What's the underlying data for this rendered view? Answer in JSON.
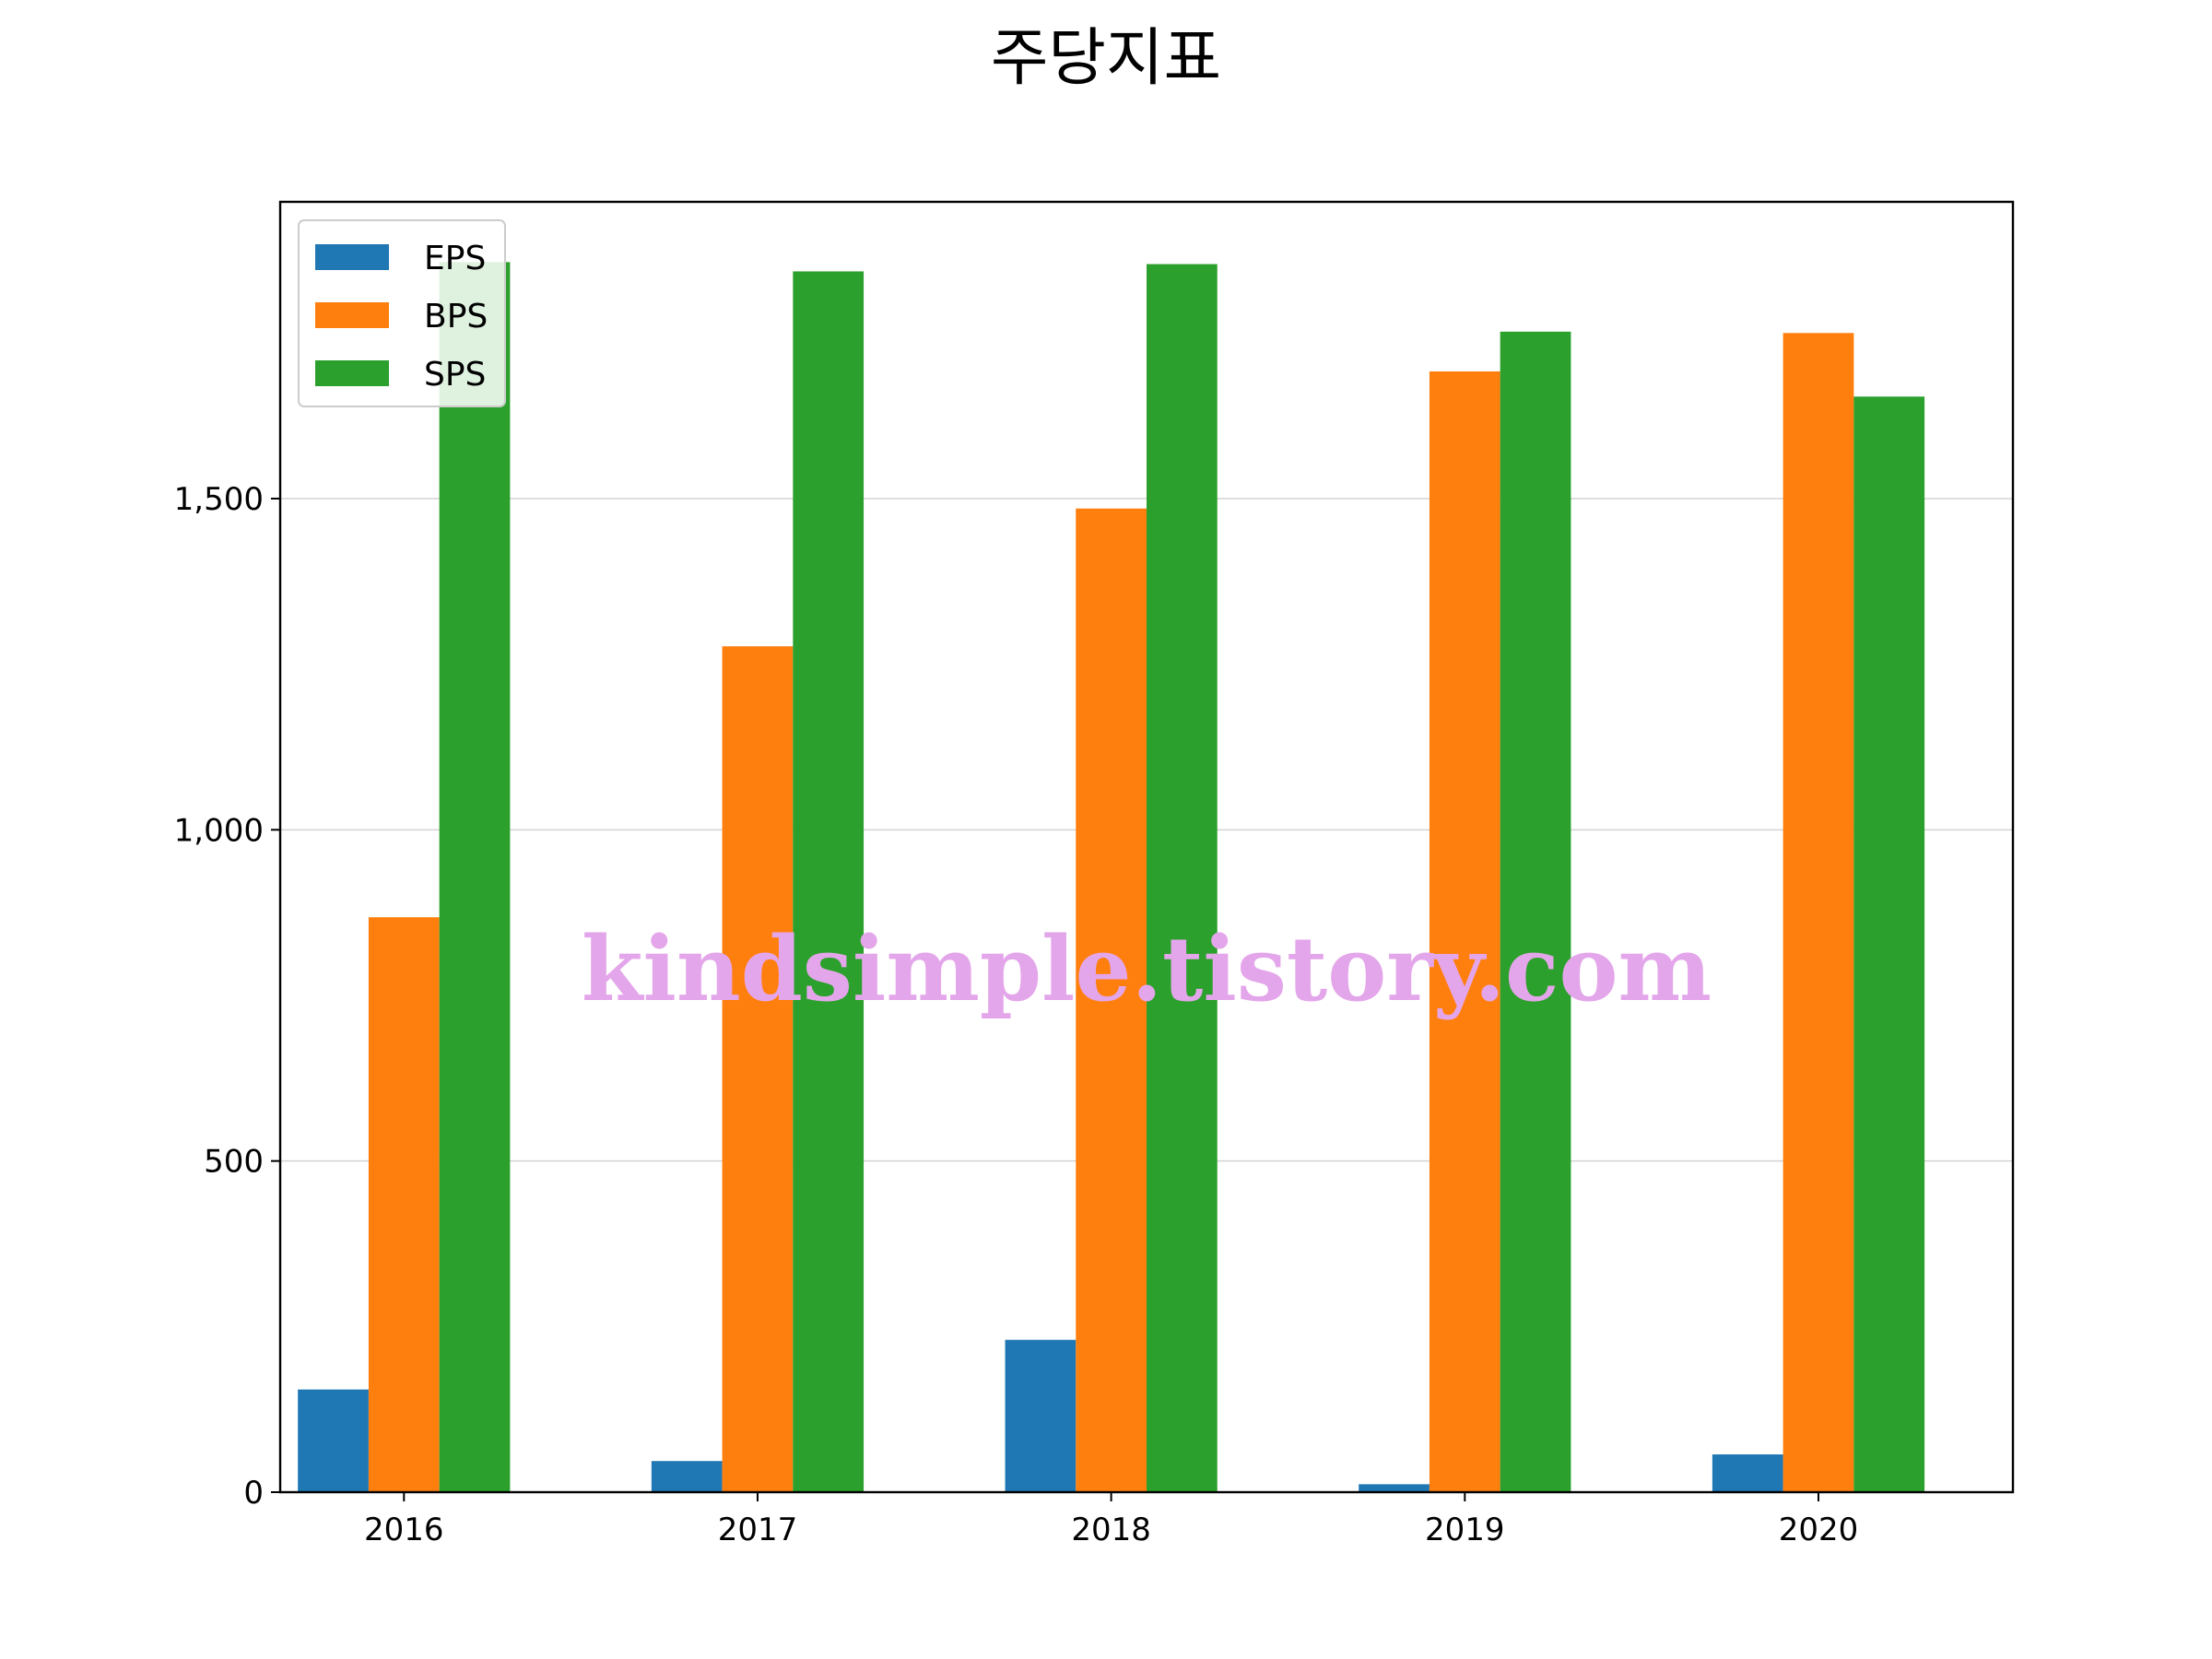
{
  "chart_data": {
    "type": "bar",
    "title": "주당지표",
    "categories": [
      "2016",
      "2017",
      "2018",
      "2019",
      "2020"
    ],
    "series": [
      {
        "name": "EPS",
        "color": "#1f77b4",
        "values": [
          155,
          47,
          230,
          12,
          57
        ]
      },
      {
        "name": "BPS",
        "color": "#ff7f0e",
        "values": [
          868,
          1277,
          1485,
          1692,
          1750
        ]
      },
      {
        "name": "SPS",
        "color": "#2ca02c",
        "values": [
          1857,
          1843,
          1854,
          1752,
          1654
        ]
      }
    ],
    "ylim": [
      0,
      1948
    ],
    "yticks": [
      0,
      500,
      1000,
      1500
    ],
    "ytick_labels": [
      "0",
      "500",
      "1,000",
      "1,500"
    ],
    "grid": "y",
    "legend_position": "top-left"
  },
  "watermark": "kindsimple.tistory.com"
}
